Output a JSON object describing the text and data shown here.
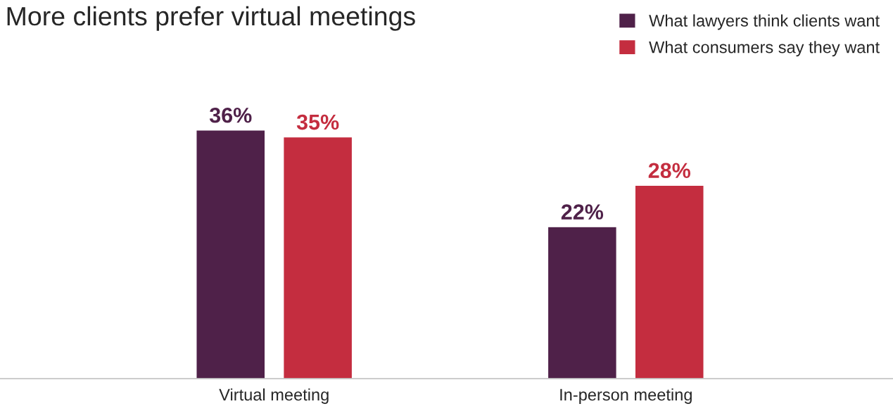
{
  "chart_data": {
    "type": "bar",
    "title": "More clients prefer virtual meetings",
    "categories": [
      "Virtual meeting",
      "In-person meeting"
    ],
    "series": [
      {
        "name": "What lawyers think clients want",
        "color": "#4f2149",
        "values": [
          36,
          22
        ],
        "value_labels": [
          "36%",
          "22%"
        ]
      },
      {
        "name": "What consumers say they want",
        "color": "#c42d3f",
        "values": [
          35,
          28
        ],
        "value_labels": [
          "35%",
          "28%"
        ]
      }
    ],
    "legend": "top right",
    "tick_labels": "x",
    "grid": false
  }
}
